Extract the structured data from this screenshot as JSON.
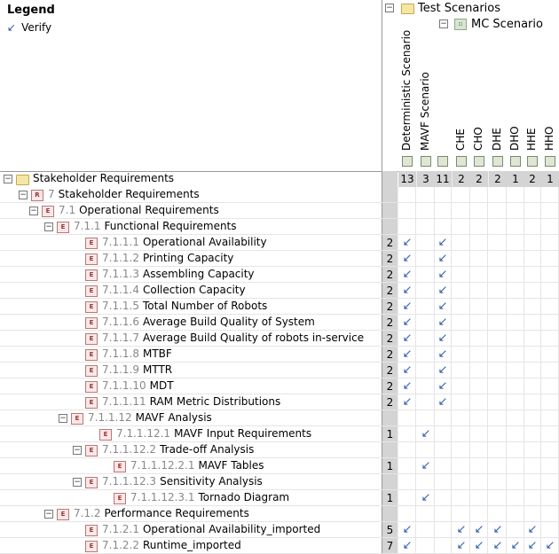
{
  "legend": {
    "title": "Legend",
    "items": [
      {
        "glyph": "↙",
        "label": "Verify"
      }
    ]
  },
  "header": {
    "test_scenarios": "Test Scenarios",
    "mc_scenario": "MC Scenario",
    "columns": [
      {
        "label": "Deterministic Scenario",
        "count": "13"
      },
      {
        "label": "MAVF Scenario",
        "count": "3"
      },
      {
        "label": "",
        "count": "11"
      },
      {
        "label": "CHE",
        "count": "2"
      },
      {
        "label": "CHO",
        "count": "2"
      },
      {
        "label": "DHE",
        "count": "2"
      },
      {
        "label": "DHO",
        "count": "1"
      },
      {
        "label": "HHE",
        "count": "2"
      },
      {
        "label": "HHO",
        "count": "1"
      }
    ]
  },
  "tree": {
    "root": "Stakeholder Requirements",
    "rows": [
      {
        "num": "7",
        "name": "Stakeholder Requirements",
        "count": "",
        "marks": []
      },
      {
        "num": "7.1",
        "name": "Operational Requirements",
        "count": "",
        "marks": []
      },
      {
        "num": "7.1.1",
        "name": "Functional Requirements",
        "count": "",
        "marks": []
      },
      {
        "num": "7.1.1.1",
        "name": "Operational Availability",
        "count": "2",
        "marks": [
          0,
          2
        ]
      },
      {
        "num": "7.1.1.2",
        "name": "Printing Capacity",
        "count": "2",
        "marks": [
          0,
          2
        ]
      },
      {
        "num": "7.1.1.3",
        "name": "Assembling Capacity",
        "count": "2",
        "marks": [
          0,
          2
        ]
      },
      {
        "num": "7.1.1.4",
        "name": "Collection Capacity",
        "count": "2",
        "marks": [
          0,
          2
        ]
      },
      {
        "num": "7.1.1.5",
        "name": "Total Number of Robots",
        "count": "2",
        "marks": [
          0,
          2
        ]
      },
      {
        "num": "7.1.1.6",
        "name": "Average Build Quality of System",
        "count": "2",
        "marks": [
          0,
          2
        ]
      },
      {
        "num": "7.1.1.7",
        "name": "Average Build Quality of robots in-service",
        "count": "2",
        "marks": [
          0,
          2
        ]
      },
      {
        "num": "7.1.1.8",
        "name": "MTBF",
        "count": "2",
        "marks": [
          0,
          2
        ]
      },
      {
        "num": "7.1.1.9",
        "name": "MTTR",
        "count": "2",
        "marks": [
          0,
          2
        ]
      },
      {
        "num": "7.1.1.10",
        "name": "MDT",
        "count": "2",
        "marks": [
          0,
          2
        ]
      },
      {
        "num": "7.1.1.11",
        "name": "RAM Metric Distributions",
        "count": "2",
        "marks": [
          0,
          2
        ]
      },
      {
        "num": "7.1.1.12",
        "name": "MAVF Analysis",
        "count": "",
        "marks": []
      },
      {
        "num": "7.1.1.12.1",
        "name": "MAVF Input Requirements",
        "count": "1",
        "marks": [
          1
        ]
      },
      {
        "num": "7.1.1.12.2",
        "name": "Trade-off Analysis",
        "count": "",
        "marks": []
      },
      {
        "num": "7.1.1.12.2.1",
        "name": "MAVF Tables",
        "count": "1",
        "marks": [
          1
        ]
      },
      {
        "num": "7.1.1.12.3",
        "name": "Sensitivity Analysis",
        "count": "",
        "marks": []
      },
      {
        "num": "7.1.1.12.3.1",
        "name": "Tornado Diagram",
        "count": "1",
        "marks": [
          1
        ]
      },
      {
        "num": "7.1.2",
        "name": "Performance Requirements",
        "count": "",
        "marks": []
      },
      {
        "num": "7.1.2.1",
        "name": "Operational Availability_imported",
        "count": "5",
        "marks": [
          0,
          3,
          4,
          5,
          7
        ]
      },
      {
        "num": "7.1.2.2",
        "name": "Runtime_imported",
        "count": "7",
        "marks": [
          0,
          3,
          4,
          5,
          6,
          7,
          8
        ]
      }
    ]
  },
  "glyphs": {
    "expand": "⊟",
    "verify": "↙",
    "req_icon": "E",
    "root_icon": "R"
  }
}
